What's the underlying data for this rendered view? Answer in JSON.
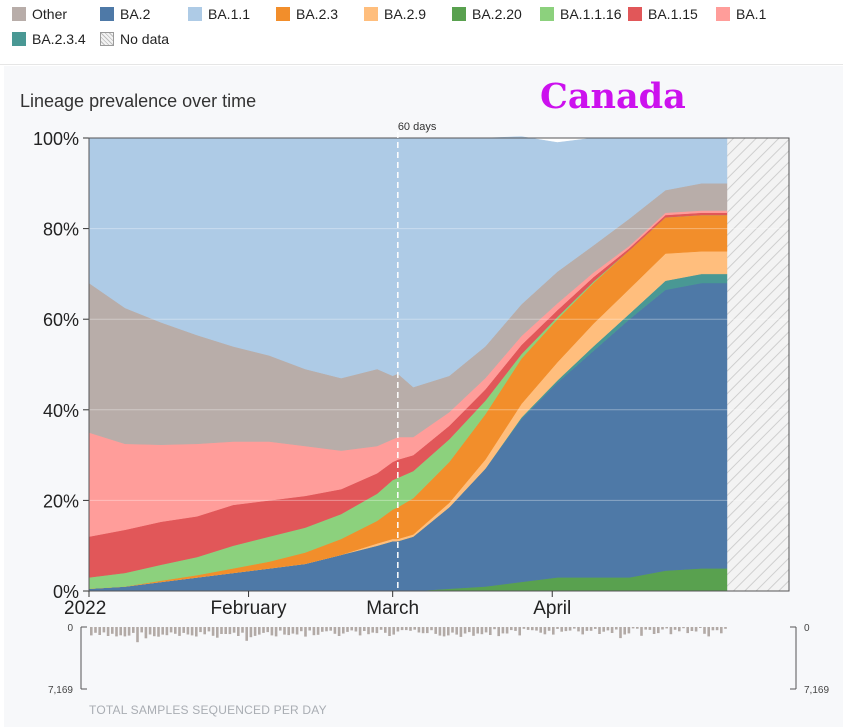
{
  "legend": [
    {
      "label": "Other",
      "color": "#b8ada9"
    },
    {
      "label": "BA.2",
      "color": "#4e79a7"
    },
    {
      "label": "BA.1.1",
      "color": "#aecbe6"
    },
    {
      "label": "BA.2.3",
      "color": "#f28e2b"
    },
    {
      "label": "BA.2.9",
      "color": "#ffbe7d"
    },
    {
      "label": "BA.2.20",
      "color": "#59a14f"
    },
    {
      "label": "BA.1.1.16",
      "color": "#8cd17d"
    },
    {
      "label": "BA.1.15",
      "color": "#e15759"
    },
    {
      "label": "BA.1",
      "color": "#ff9d9a"
    },
    {
      "label": "BA.2.3.4",
      "color": "#499894"
    },
    {
      "label": "No data",
      "color": "hatch"
    }
  ],
  "title": "Lineage prevalence over time",
  "country": "Canada",
  "marker_label": "60 days",
  "samples_label": "TOTAL SAMPLES SEQUENCED PER DAY",
  "samples_axis": {
    "top": "0",
    "bottom": "7,169"
  },
  "chart_data": {
    "type": "area",
    "stacked": true,
    "x_unit": "days since 2022-01-01",
    "x": [
      0,
      7,
      14,
      21,
      28,
      35,
      42,
      49,
      56,
      59,
      60,
      63,
      70,
      77,
      84,
      91,
      98,
      105,
      112,
      119
    ],
    "x_ticks": [
      {
        "value": 0,
        "label": "2022"
      },
      {
        "value": 31,
        "label": "February"
      },
      {
        "value": 59,
        "label": "March"
      },
      {
        "value": 90,
        "label": "April"
      }
    ],
    "y_ticks": [
      "0%",
      "20%",
      "40%",
      "60%",
      "80%",
      "100%"
    ],
    "ylim": [
      0,
      100
    ],
    "no_data_from": 124,
    "x_max": 136,
    "marker_x": 60,
    "series": [
      {
        "name": "BA.2.20",
        "color": "#59a14f",
        "values": [
          0,
          0,
          0,
          0,
          0,
          0,
          0,
          0,
          0,
          0,
          0,
          0,
          0.5,
          1,
          2,
          3,
          3,
          3,
          4.5,
          5
        ]
      },
      {
        "name": "BA.2",
        "color": "#4e79a7",
        "values": [
          0.5,
          1,
          2,
          3,
          4,
          5,
          6,
          8,
          10,
          11,
          11,
          12,
          18,
          26,
          36,
          43,
          50,
          57,
          62,
          63
        ]
      },
      {
        "name": "BA.2.3.4",
        "color": "#499894",
        "values": [
          0,
          0,
          0,
          0,
          0,
          0,
          0,
          0,
          0,
          0,
          0,
          0,
          0,
          0,
          0.3,
          0.5,
          1,
          1.2,
          2,
          2
        ]
      },
      {
        "name": "BA.2.9",
        "color": "#ffbe7d",
        "values": [
          0,
          0,
          0,
          0,
          0,
          0,
          0,
          0,
          0.5,
          0.5,
          0.5,
          0.5,
          1,
          2,
          3,
          4,
          5,
          5.5,
          6,
          5
        ]
      },
      {
        "name": "BA.2.3",
        "color": "#f28e2b",
        "values": [
          0,
          0,
          0.3,
          0.5,
          1,
          1.5,
          2.5,
          3.5,
          5,
          6.5,
          7,
          8,
          9,
          10,
          10,
          9.5,
          9,
          8.5,
          8,
          8
        ]
      },
      {
        "name": "BA.1.1.16",
        "color": "#8cd17d",
        "values": [
          2.5,
          3,
          3.5,
          4,
          5,
          5.5,
          5.5,
          5.5,
          6,
          6.5,
          6.5,
          6,
          5,
          3,
          1,
          0.5,
          0.3,
          0,
          0,
          0
        ]
      },
      {
        "name": "BA.1.15",
        "color": "#e15759",
        "values": [
          9,
          9.5,
          9.5,
          9,
          9,
          8,
          7,
          5.5,
          4.5,
          4,
          4,
          3.5,
          3,
          2.5,
          2,
          1.5,
          1,
          0.5,
          0.5,
          0.5
        ]
      },
      {
        "name": "BA.1",
        "color": "#ff9d9a",
        "values": [
          23,
          19,
          17,
          16,
          14,
          13,
          11,
          8.5,
          6,
          5,
          5,
          4,
          3,
          2.5,
          2,
          1.5,
          1,
          0.5,
          0.5,
          0.5
        ]
      },
      {
        "name": "Other",
        "color": "#b8ada9",
        "values": [
          33,
          30,
          27,
          24,
          21,
          19,
          17,
          16,
          17,
          14,
          14,
          11,
          8,
          7,
          7,
          7,
          6,
          6,
          5,
          6
        ]
      },
      {
        "name": "BA.1.1",
        "color": "#aecbe6",
        "values": [
          32,
          37.5,
          40.7,
          43.5,
          46,
          48,
          51,
          53,
          51,
          52.5,
          52,
          55,
          52.5,
          46,
          37,
          28.5,
          23.7,
          17.8,
          11.5,
          10
        ]
      }
    ]
  }
}
